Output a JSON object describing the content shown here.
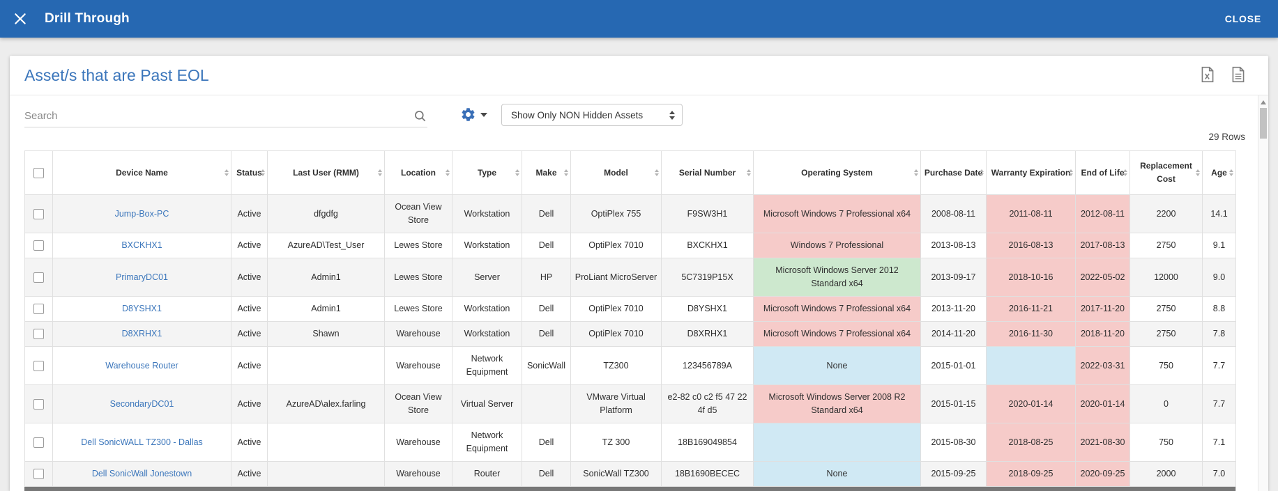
{
  "appbar": {
    "title": "Drill Through",
    "close_label": "CLOSE"
  },
  "card": {
    "title": "Asset/s that are Past EOL",
    "search_placeholder": "Search",
    "filter_selected": "Show Only NON Hidden Assets",
    "rows_count": "29 Rows"
  },
  "colors": {
    "appbar_blue": "#2668b2",
    "title_blue": "#3b76bb",
    "link_blue": "#3b76bb",
    "highlight_red": "#f6cbc9",
    "highlight_green": "#cde8ce",
    "highlight_blue": "#d0e9f4",
    "zebra_gray": "#f4f4f4"
  },
  "table": {
    "columns": [
      {
        "key": "checkbox",
        "label": ""
      },
      {
        "key": "device_name",
        "label": "Device Name"
      },
      {
        "key": "status",
        "label": "Status"
      },
      {
        "key": "last_user",
        "label": "Last User (RMM)"
      },
      {
        "key": "location",
        "label": "Location"
      },
      {
        "key": "type",
        "label": "Type"
      },
      {
        "key": "make",
        "label": "Make"
      },
      {
        "key": "model",
        "label": "Model"
      },
      {
        "key": "serial",
        "label": "Serial Number"
      },
      {
        "key": "os",
        "label": "Operating System"
      },
      {
        "key": "purchase_date",
        "label": "Purchase Date"
      },
      {
        "key": "warranty",
        "label": "Warranty Expiration"
      },
      {
        "key": "eol",
        "label": "End of Life"
      },
      {
        "key": "cost",
        "label": "Replacement Cost"
      },
      {
        "key": "age",
        "label": "Age"
      }
    ],
    "rows": [
      {
        "device_name": "Jump-Box-PC",
        "status": "Active",
        "last_user": "dfgdfg",
        "location": "Ocean View Store",
        "type": "Workstation",
        "make": "Dell",
        "model": "OptiPlex 755",
        "serial": "F9SW3H1",
        "os": {
          "text": "Microsoft Windows 7 Professional x64",
          "hl": "red"
        },
        "purchase_date": "2008-08-11",
        "warranty": {
          "text": "2011-08-11",
          "hl": "red"
        },
        "eol": {
          "text": "2012-08-11",
          "hl": "red"
        },
        "cost": "2200",
        "age": "14.1"
      },
      {
        "device_name": "BXCKHX1",
        "status": "Active",
        "last_user": "AzureAD\\Test_User",
        "location": "Lewes Store",
        "type": "Workstation",
        "make": "Dell",
        "model": "OptiPlex 7010",
        "serial": "BXCKHX1",
        "os": {
          "text": "Windows 7 Professional",
          "hl": "red"
        },
        "purchase_date": "2013-08-13",
        "warranty": {
          "text": "2016-08-13",
          "hl": "red"
        },
        "eol": {
          "text": "2017-08-13",
          "hl": "red"
        },
        "cost": "2750",
        "age": "9.1"
      },
      {
        "device_name": "PrimaryDC01",
        "status": "Active",
        "last_user": "Admin1",
        "location": "Lewes Store",
        "type": "Server",
        "make": "HP",
        "model": "ProLiant MicroServer",
        "serial": "5C7319P15X",
        "os": {
          "text": "Microsoft Windows Server 2012 Standard x64",
          "hl": "green"
        },
        "purchase_date": "2013-09-17",
        "warranty": {
          "text": "2018-10-16",
          "hl": "red"
        },
        "eol": {
          "text": "2022-05-02",
          "hl": "red"
        },
        "cost": "12000",
        "age": "9.0"
      },
      {
        "device_name": "D8YSHX1",
        "status": "Active",
        "last_user": "Admin1",
        "location": "Lewes Store",
        "type": "Workstation",
        "make": "Dell",
        "model": "OptiPlex 7010",
        "serial": "D8YSHX1",
        "os": {
          "text": "Microsoft Windows 7 Professional x64",
          "hl": "red"
        },
        "purchase_date": "2013-11-20",
        "warranty": {
          "text": "2016-11-21",
          "hl": "red"
        },
        "eol": {
          "text": "2017-11-20",
          "hl": "red"
        },
        "cost": "2750",
        "age": "8.8"
      },
      {
        "device_name": "D8XRHX1",
        "status": "Active",
        "last_user": "Shawn",
        "location": "Warehouse",
        "type": "Workstation",
        "make": "Dell",
        "model": "OptiPlex 7010",
        "serial": "D8XRHX1",
        "os": {
          "text": "Microsoft Windows 7 Professional x64",
          "hl": "red"
        },
        "purchase_date": "2014-11-20",
        "warranty": {
          "text": "2016-11-30",
          "hl": "red"
        },
        "eol": {
          "text": "2018-11-20",
          "hl": "red"
        },
        "cost": "2750",
        "age": "7.8"
      },
      {
        "device_name": "Warehouse Router",
        "status": "Active",
        "last_user": "",
        "location": "Warehouse",
        "type": "Network Equipment",
        "make": "SonicWall",
        "model": "TZ300",
        "serial": "123456789A",
        "os": {
          "text": "None",
          "hl": "blue"
        },
        "purchase_date": "2015-01-01",
        "warranty": {
          "text": "",
          "hl": "blue"
        },
        "eol": {
          "text": "2022-03-31",
          "hl": "red"
        },
        "cost": "750",
        "age": "7.7"
      },
      {
        "device_name": "SecondaryDC01",
        "status": "Active",
        "last_user": "AzureAD\\alex.farling",
        "location": "Ocean View Store",
        "type": "Virtual Server",
        "make": "",
        "model": "VMware Virtual Platform",
        "serial": "e2-82 c0 c2 f5 47 22 4f d5",
        "os": {
          "text": "Microsoft Windows Server 2008 R2 Standard x64",
          "hl": "red"
        },
        "purchase_date": "2015-01-15",
        "warranty": {
          "text": "2020-01-14",
          "hl": "red"
        },
        "eol": {
          "text": "2020-01-14",
          "hl": "red"
        },
        "cost": "0",
        "age": "7.7"
      },
      {
        "device_name": "Dell SonicWALL TZ300 - Dallas",
        "status": "Active",
        "last_user": "",
        "location": "Warehouse",
        "type": "Network Equipment",
        "make": "Dell",
        "model": "TZ 300",
        "serial": "18B169049854",
        "os": {
          "text": "",
          "hl": "blue"
        },
        "purchase_date": "2015-08-30",
        "warranty": {
          "text": "2018-08-25",
          "hl": "red"
        },
        "eol": {
          "text": "2021-08-30",
          "hl": "red"
        },
        "cost": "750",
        "age": "7.1"
      },
      {
        "device_name": "Dell SonicWall Jonestown",
        "status": "Active",
        "last_user": "",
        "location": "Warehouse",
        "type": "Router",
        "make": "Dell",
        "model": "SonicWall TZ300",
        "serial": "18B1690BECEC",
        "os": {
          "text": "None",
          "hl": "blue"
        },
        "purchase_date": "2015-09-25",
        "warranty": {
          "text": "2018-09-25",
          "hl": "red"
        },
        "eol": {
          "text": "2020-09-25",
          "hl": "red"
        },
        "cost": "2000",
        "age": "7.0"
      },
      {
        "device_name": "",
        "status": "",
        "last_user": "",
        "location": "",
        "type": "",
        "make": "",
        "model": "",
        "serial": "",
        "os": {
          "text": "",
          "hl": "green"
        },
        "purchase_date": "",
        "warranty": {
          "text": "",
          "hl": "red"
        },
        "eol": {
          "text": "",
          "hl": "red"
        },
        "cost": "",
        "age": ""
      }
    ]
  }
}
